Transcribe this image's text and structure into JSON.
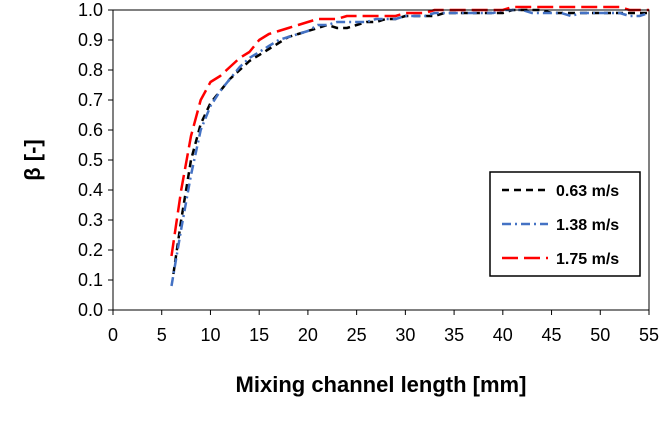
{
  "chart_data": {
    "type": "line",
    "title": "",
    "xlabel": "Mixing channel length [mm]",
    "ylabel": "β [-]",
    "xlim": [
      0,
      55
    ],
    "ylim": [
      0.0,
      1.0
    ],
    "x_ticks": [
      "0",
      "5",
      "10",
      "15",
      "20",
      "25",
      "30",
      "35",
      "40",
      "45",
      "50",
      "55"
    ],
    "y_ticks": [
      "0.0",
      "0.1",
      "0.2",
      "0.3",
      "0.4",
      "0.5",
      "0.6",
      "0.7",
      "0.8",
      "0.9",
      "1.0"
    ],
    "grid": false,
    "legend_position": "right-middle",
    "series": [
      {
        "name": "0.63 m/s",
        "color": "#000000",
        "dash": "dash",
        "x": [
          6.2,
          7,
          8,
          9,
          10,
          11,
          12,
          13,
          14,
          15,
          16,
          17,
          18,
          19,
          20,
          21,
          22,
          23,
          24,
          25,
          26,
          27,
          28,
          29,
          30,
          31,
          32,
          33,
          34,
          35,
          36,
          37,
          38,
          39,
          40,
          41,
          42,
          43,
          44,
          45,
          46,
          47,
          48,
          49,
          50,
          51,
          52,
          53,
          54,
          55
        ],
        "y": [
          0.12,
          0.3,
          0.5,
          0.62,
          0.69,
          0.73,
          0.77,
          0.8,
          0.83,
          0.85,
          0.87,
          0.89,
          0.91,
          0.92,
          0.93,
          0.94,
          0.95,
          0.94,
          0.94,
          0.95,
          0.96,
          0.96,
          0.97,
          0.97,
          0.98,
          0.98,
          0.98,
          0.98,
          0.99,
          0.99,
          0.99,
          0.99,
          0.99,
          0.99,
          0.99,
          1.0,
          1.0,
          1.0,
          1.0,
          0.99,
          0.99,
          0.99,
          0.99,
          0.99,
          0.99,
          0.99,
          0.99,
          0.99,
          0.99,
          0.99
        ]
      },
      {
        "name": "1.38 m/s",
        "color": "#4472C4",
        "dash": "dashdot",
        "x": [
          6.0,
          7,
          8,
          9,
          10,
          11,
          12,
          13,
          14,
          15,
          16,
          17,
          18,
          19,
          20,
          21,
          22,
          23,
          24,
          25,
          26,
          27,
          28,
          29,
          30,
          31,
          32,
          33,
          34,
          35,
          36,
          37,
          38,
          39,
          40,
          41,
          42,
          43,
          44,
          45,
          46,
          47,
          48,
          49,
          50,
          51,
          52,
          53,
          54,
          55
        ],
        "y": [
          0.08,
          0.27,
          0.45,
          0.6,
          0.68,
          0.73,
          0.77,
          0.81,
          0.84,
          0.86,
          0.88,
          0.9,
          0.91,
          0.92,
          0.93,
          0.95,
          0.95,
          0.96,
          0.96,
          0.96,
          0.96,
          0.97,
          0.97,
          0.97,
          0.98,
          0.98,
          0.98,
          0.99,
          0.99,
          0.99,
          0.99,
          0.99,
          0.99,
          0.99,
          1.0,
          1.0,
          1.0,
          0.99,
          0.99,
          0.99,
          0.99,
          0.98,
          0.99,
          0.99,
          0.99,
          0.99,
          0.99,
          0.98,
          0.98,
          0.99
        ]
      },
      {
        "name": "1.75 m/s",
        "color": "#FF0000",
        "dash": "longdash",
        "x": [
          6.0,
          7,
          8,
          9,
          10,
          11,
          12,
          13,
          14,
          15,
          16,
          17,
          18,
          19,
          20,
          21,
          22,
          23,
          24,
          25,
          26,
          27,
          28,
          29,
          30,
          31,
          32,
          33,
          34,
          35,
          36,
          37,
          38,
          39,
          40,
          41,
          42,
          43,
          44,
          45,
          46,
          47,
          48,
          49,
          50,
          51,
          52,
          53,
          54,
          55
        ],
        "y": [
          0.18,
          0.4,
          0.58,
          0.7,
          0.76,
          0.78,
          0.81,
          0.84,
          0.86,
          0.9,
          0.92,
          0.93,
          0.94,
          0.95,
          0.96,
          0.97,
          0.97,
          0.97,
          0.98,
          0.98,
          0.98,
          0.98,
          0.98,
          0.98,
          0.99,
          0.99,
          0.99,
          1.0,
          1.0,
          1.0,
          1.0,
          1.0,
          1.0,
          1.0,
          1.0,
          1.01,
          1.01,
          1.01,
          1.01,
          1.01,
          1.01,
          1.01,
          1.01,
          1.01,
          1.01,
          1.01,
          1.01,
          1.0,
          1.0,
          1.0
        ]
      }
    ]
  }
}
